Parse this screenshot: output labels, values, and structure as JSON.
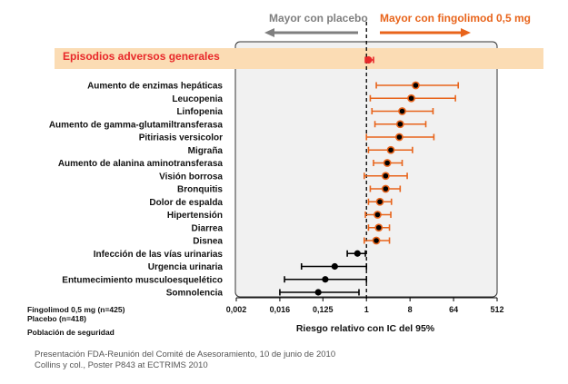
{
  "colors": {
    "favor_placebo": "#7f7f7f",
    "favor_fingolimod": "#e8641b",
    "general_row_text": "#e8282a",
    "general_band": "#fbdcb4",
    "panel_bg": "#f1f1f1",
    "black_series": "#000000"
  },
  "header": {
    "left_label": "Mayor con placebo",
    "right_label": "Mayor con fingolimod 0,5 mg"
  },
  "general_row": {
    "label": "Episodios adversos generales"
  },
  "legend_notes": {
    "line1": "Fingolimod 0,5 mg (n=425)",
    "line2": "Placebo (n=418)",
    "population": "Población de seguridad"
  },
  "footer": {
    "line1": "Presentación FDA-Reunión del Comité de Asesoramiento, 10 de junio de 2010",
    "line2": "Collins y col., Poster P843 at ECTRIMS 2010"
  },
  "chart_data": {
    "type": "forest",
    "title": "",
    "xlabel": "Riesgo relativo con IC del 95%",
    "xscale": "log2",
    "xlim": [
      0.002,
      512
    ],
    "xticks": [
      "0,002",
      "0,016",
      "0,125",
      "1",
      "8",
      "64",
      "512"
    ],
    "xtick_values": [
      0.002,
      0.016,
      0.125,
      1,
      8,
      64,
      512
    ],
    "reference_line": 1,
    "general": {
      "label": "Episodios adversos generales",
      "rr": 1.1,
      "lo": 0.95,
      "hi": 1.4,
      "color": "red"
    },
    "rows": [
      {
        "label": "Aumento de enzimas hepáticas",
        "rr": 10.5,
        "lo": 1.6,
        "hi": 80,
        "color": "orange"
      },
      {
        "label": "Leucopenia",
        "rr": 8.5,
        "lo": 1.2,
        "hi": 70,
        "color": "orange"
      },
      {
        "label": "Linfopenia",
        "rr": 5.5,
        "lo": 1.3,
        "hi": 24,
        "color": "orange"
      },
      {
        "label": "Aumento de gamma-glutamiltransferasa",
        "rr": 5.0,
        "lo": 1.5,
        "hi": 17,
        "color": "orange"
      },
      {
        "label": "Pitiriasis versicolor",
        "rr": 4.8,
        "lo": 1.0,
        "hi": 25,
        "color": "orange"
      },
      {
        "label": "Migraña",
        "rr": 3.2,
        "lo": 1.1,
        "hi": 9,
        "color": "orange"
      },
      {
        "label": "Aumento de alanina aminotransferasa",
        "rr": 2.7,
        "lo": 1.4,
        "hi": 5.5,
        "color": "orange"
      },
      {
        "label": "Visión borrosa",
        "rr": 2.5,
        "lo": 0.9,
        "hi": 7,
        "color": "orange"
      },
      {
        "label": "Bronquitis",
        "rr": 2.5,
        "lo": 1.2,
        "hi": 5,
        "color": "orange"
      },
      {
        "label": "Dolor de espalda",
        "rr": 1.9,
        "lo": 1.1,
        "hi": 3.3,
        "color": "orange"
      },
      {
        "label": "Hipertensión",
        "rr": 1.7,
        "lo": 0.95,
        "hi": 3.2,
        "color": "orange"
      },
      {
        "label": "Diarrea",
        "rr": 1.8,
        "lo": 1.1,
        "hi": 3.0,
        "color": "orange"
      },
      {
        "label": "Disnea",
        "rr": 1.6,
        "lo": 0.9,
        "hi": 3.0,
        "color": "orange"
      },
      {
        "label": "Infección de las vías urinarias",
        "rr": 0.65,
        "lo": 0.4,
        "hi": 0.95,
        "color": "black"
      },
      {
        "label": "Urgencia urinaria",
        "rr": 0.22,
        "lo": 0.045,
        "hi": 1.0,
        "color": "black"
      },
      {
        "label": "Entumecimiento musculoesquelético",
        "rr": 0.14,
        "lo": 0.02,
        "hi": 1.0,
        "color": "black"
      },
      {
        "label": "Somnolencia",
        "rr": 0.1,
        "lo": 0.016,
        "hi": 0.7,
        "color": "black"
      }
    ]
  }
}
